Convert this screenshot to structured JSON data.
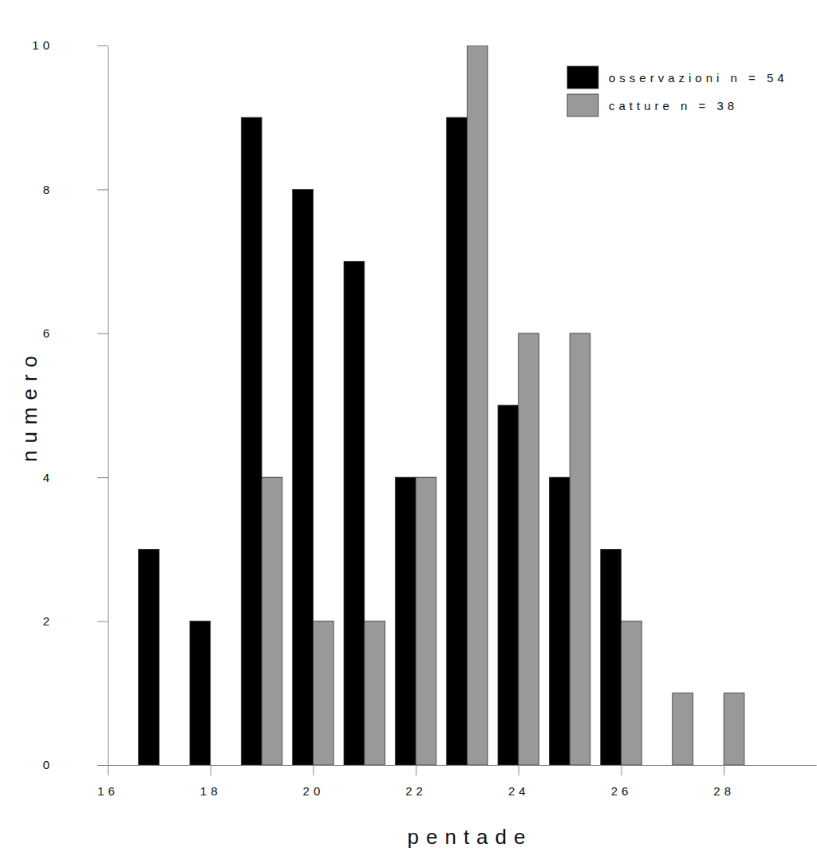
{
  "chart_data": {
    "type": "bar",
    "x_label": "pentade",
    "y_label": "numero",
    "x": [
      17,
      18,
      19,
      20,
      21,
      22,
      23,
      24,
      25,
      26,
      27,
      28
    ],
    "series": [
      {
        "name": "osservazioni n = 54",
        "color": "#000000",
        "values": [
          3,
          2,
          9,
          8,
          7,
          4,
          9,
          5,
          4,
          3,
          0,
          0
        ]
      },
      {
        "name": "catture n = 38",
        "color": "#999999",
        "values": [
          0,
          0,
          4,
          2,
          2,
          4,
          10,
          6,
          6,
          2,
          1,
          1
        ]
      }
    ],
    "xlim": [
      16,
      29.8
    ],
    "xticks": [
      16,
      18,
      20,
      22,
      24,
      26,
      28
    ],
    "ylim": [
      0,
      10
    ],
    "yticks": [
      0,
      2,
      4,
      6,
      8,
      10
    ],
    "grid": false,
    "legend": "top-right"
  }
}
